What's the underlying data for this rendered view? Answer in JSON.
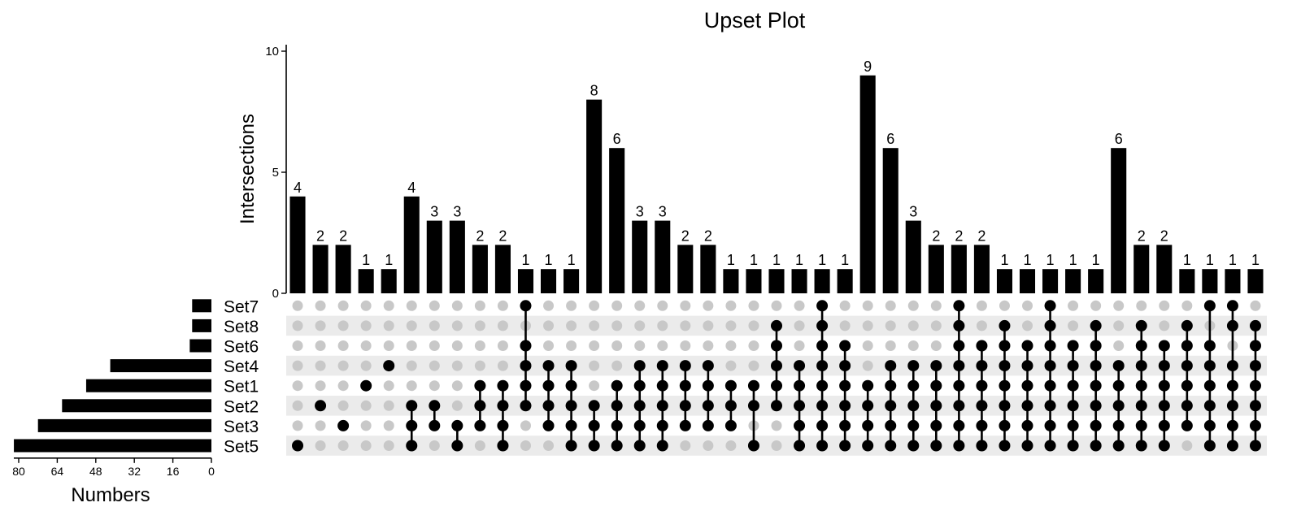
{
  "chart_data": {
    "type": "upset",
    "title": "Upset Plot",
    "intersections_axis": {
      "label": "Intersections",
      "ylim": [
        0,
        10
      ],
      "ticks": [
        "0",
        "5",
        "10"
      ]
    },
    "sets_axis": {
      "label": "Numbers",
      "xlim": [
        0,
        80
      ],
      "ticks": [
        "80",
        "64",
        "48",
        "32",
        "16",
        "0"
      ]
    },
    "sets": [
      {
        "name": "Set7",
        "size": 8
      },
      {
        "name": "Set8",
        "size": 8
      },
      {
        "name": "Set6",
        "size": 9
      },
      {
        "name": "Set4",
        "size": 42
      },
      {
        "name": "Set1",
        "size": 52
      },
      {
        "name": "Set2",
        "size": 62
      },
      {
        "name": "Set3",
        "size": 72
      },
      {
        "name": "Set5",
        "size": 82
      }
    ],
    "intersections": [
      {
        "value": 4,
        "label": "4",
        "members": [
          "Set5"
        ]
      },
      {
        "value": 2,
        "label": "2",
        "members": [
          "Set2"
        ]
      },
      {
        "value": 2,
        "label": "2",
        "members": [
          "Set3"
        ]
      },
      {
        "value": 1,
        "label": "1",
        "members": [
          "Set1"
        ]
      },
      {
        "value": 1,
        "label": "1",
        "members": [
          "Set4"
        ]
      },
      {
        "value": 4,
        "label": "4",
        "members": [
          "Set2",
          "Set3",
          "Set5"
        ]
      },
      {
        "value": 3,
        "label": "3",
        "members": [
          "Set2",
          "Set3"
        ]
      },
      {
        "value": 3,
        "label": "3",
        "members": [
          "Set3",
          "Set5"
        ]
      },
      {
        "value": 2,
        "label": "2",
        "members": [
          "Set1",
          "Set2",
          "Set3"
        ]
      },
      {
        "value": 2,
        "label": "2",
        "members": [
          "Set1",
          "Set2",
          "Set3",
          "Set5"
        ]
      },
      {
        "value": 1,
        "label": "1",
        "members": [
          "Set7",
          "Set6",
          "Set4",
          "Set1",
          "Set2"
        ]
      },
      {
        "value": 1,
        "label": "1",
        "members": [
          "Set4",
          "Set1",
          "Set2",
          "Set3"
        ]
      },
      {
        "value": 1,
        "label": "1",
        "members": [
          "Set4",
          "Set1",
          "Set2",
          "Set3",
          "Set5"
        ]
      },
      {
        "value": 8,
        "label": "8",
        "members": [
          "Set2",
          "Set3",
          "Set5"
        ]
      },
      {
        "value": 6,
        "label": "6",
        "members": [
          "Set1",
          "Set2",
          "Set3",
          "Set5"
        ]
      },
      {
        "value": 3,
        "label": "3",
        "members": [
          "Set4",
          "Set1",
          "Set2",
          "Set3",
          "Set5"
        ]
      },
      {
        "value": 3,
        "label": "3",
        "members": [
          "Set4",
          "Set1",
          "Set2",
          "Set3",
          "Set5"
        ]
      },
      {
        "value": 2,
        "label": "2",
        "members": [
          "Set4",
          "Set1",
          "Set2",
          "Set3"
        ]
      },
      {
        "value": 2,
        "label": "2",
        "members": [
          "Set4",
          "Set1",
          "Set2",
          "Set3"
        ]
      },
      {
        "value": 1,
        "label": "1",
        "members": [
          "Set1",
          "Set2",
          "Set3"
        ]
      },
      {
        "value": 1,
        "label": "1",
        "members": [
          "Set1",
          "Set2",
          "Set5"
        ]
      },
      {
        "value": 1,
        "label": "1",
        "members": [
          "Set8",
          "Set6",
          "Set4",
          "Set1",
          "Set2"
        ]
      },
      {
        "value": 1,
        "label": "1",
        "members": [
          "Set4",
          "Set1",
          "Set2",
          "Set3",
          "Set5"
        ]
      },
      {
        "value": 1,
        "label": "1",
        "members": [
          "Set7",
          "Set8",
          "Set6",
          "Set4",
          "Set1",
          "Set2",
          "Set3",
          "Set5"
        ]
      },
      {
        "value": 1,
        "label": "1",
        "members": [
          "Set6",
          "Set4",
          "Set1",
          "Set2",
          "Set3",
          "Set5"
        ]
      },
      {
        "value": 9,
        "label": "9",
        "members": [
          "Set1",
          "Set2",
          "Set3",
          "Set5"
        ]
      },
      {
        "value": 6,
        "label": "6",
        "members": [
          "Set4",
          "Set1",
          "Set2",
          "Set3",
          "Set5"
        ]
      },
      {
        "value": 3,
        "label": "3",
        "members": [
          "Set4",
          "Set1",
          "Set2",
          "Set3",
          "Set5"
        ]
      },
      {
        "value": 2,
        "label": "2",
        "members": [
          "Set4",
          "Set1",
          "Set2",
          "Set3",
          "Set5"
        ]
      },
      {
        "value": 2,
        "label": "2",
        "members": [
          "Set7",
          "Set8",
          "Set6",
          "Set4",
          "Set1",
          "Set2",
          "Set3",
          "Set5"
        ]
      },
      {
        "value": 2,
        "label": "2",
        "members": [
          "Set6",
          "Set4",
          "Set1",
          "Set2",
          "Set3",
          "Set5"
        ]
      },
      {
        "value": 1,
        "label": "1",
        "members": [
          "Set8",
          "Set6",
          "Set4",
          "Set1",
          "Set2",
          "Set3",
          "Set5"
        ]
      },
      {
        "value": 1,
        "label": "1",
        "members": [
          "Set6",
          "Set4",
          "Set1",
          "Set2",
          "Set3",
          "Set5"
        ]
      },
      {
        "value": 1,
        "label": "1",
        "members": [
          "Set7",
          "Set8",
          "Set6",
          "Set4",
          "Set1",
          "Set2",
          "Set3",
          "Set5"
        ]
      },
      {
        "value": 1,
        "label": "1",
        "members": [
          "Set6",
          "Set4",
          "Set1",
          "Set2",
          "Set3",
          "Set5"
        ]
      },
      {
        "value": 1,
        "label": "1",
        "members": [
          "Set8",
          "Set6",
          "Set4",
          "Set1",
          "Set2",
          "Set3",
          "Set5"
        ]
      },
      {
        "value": 6,
        "label": "6",
        "members": [
          "Set4",
          "Set1",
          "Set2",
          "Set3",
          "Set5"
        ]
      },
      {
        "value": 2,
        "label": "2",
        "members": [
          "Set8",
          "Set6",
          "Set4",
          "Set1",
          "Set2",
          "Set3",
          "Set5"
        ]
      },
      {
        "value": 2,
        "label": "2",
        "members": [
          "Set6",
          "Set4",
          "Set1",
          "Set2",
          "Set3",
          "Set5"
        ]
      },
      {
        "value": 1,
        "label": "1",
        "members": [
          "Set8",
          "Set6",
          "Set4",
          "Set1",
          "Set2",
          "Set3"
        ]
      },
      {
        "value": 1,
        "label": "1",
        "members": [
          "Set7",
          "Set6",
          "Set4",
          "Set1",
          "Set2",
          "Set3",
          "Set5"
        ]
      },
      {
        "value": 1,
        "label": "1",
        "members": [
          "Set7",
          "Set8",
          "Set4",
          "Set1",
          "Set2",
          "Set3",
          "Set5"
        ]
      },
      {
        "value": 1,
        "label": "1",
        "members": [
          "Set8",
          "Set6",
          "Set4",
          "Set1",
          "Set2",
          "Set3",
          "Set5"
        ]
      }
    ],
    "colors": {
      "bar": "#000000",
      "dot_active": "#000000",
      "dot_inactive": "#c8c8c8",
      "stripe": "#ebebeb"
    }
  }
}
